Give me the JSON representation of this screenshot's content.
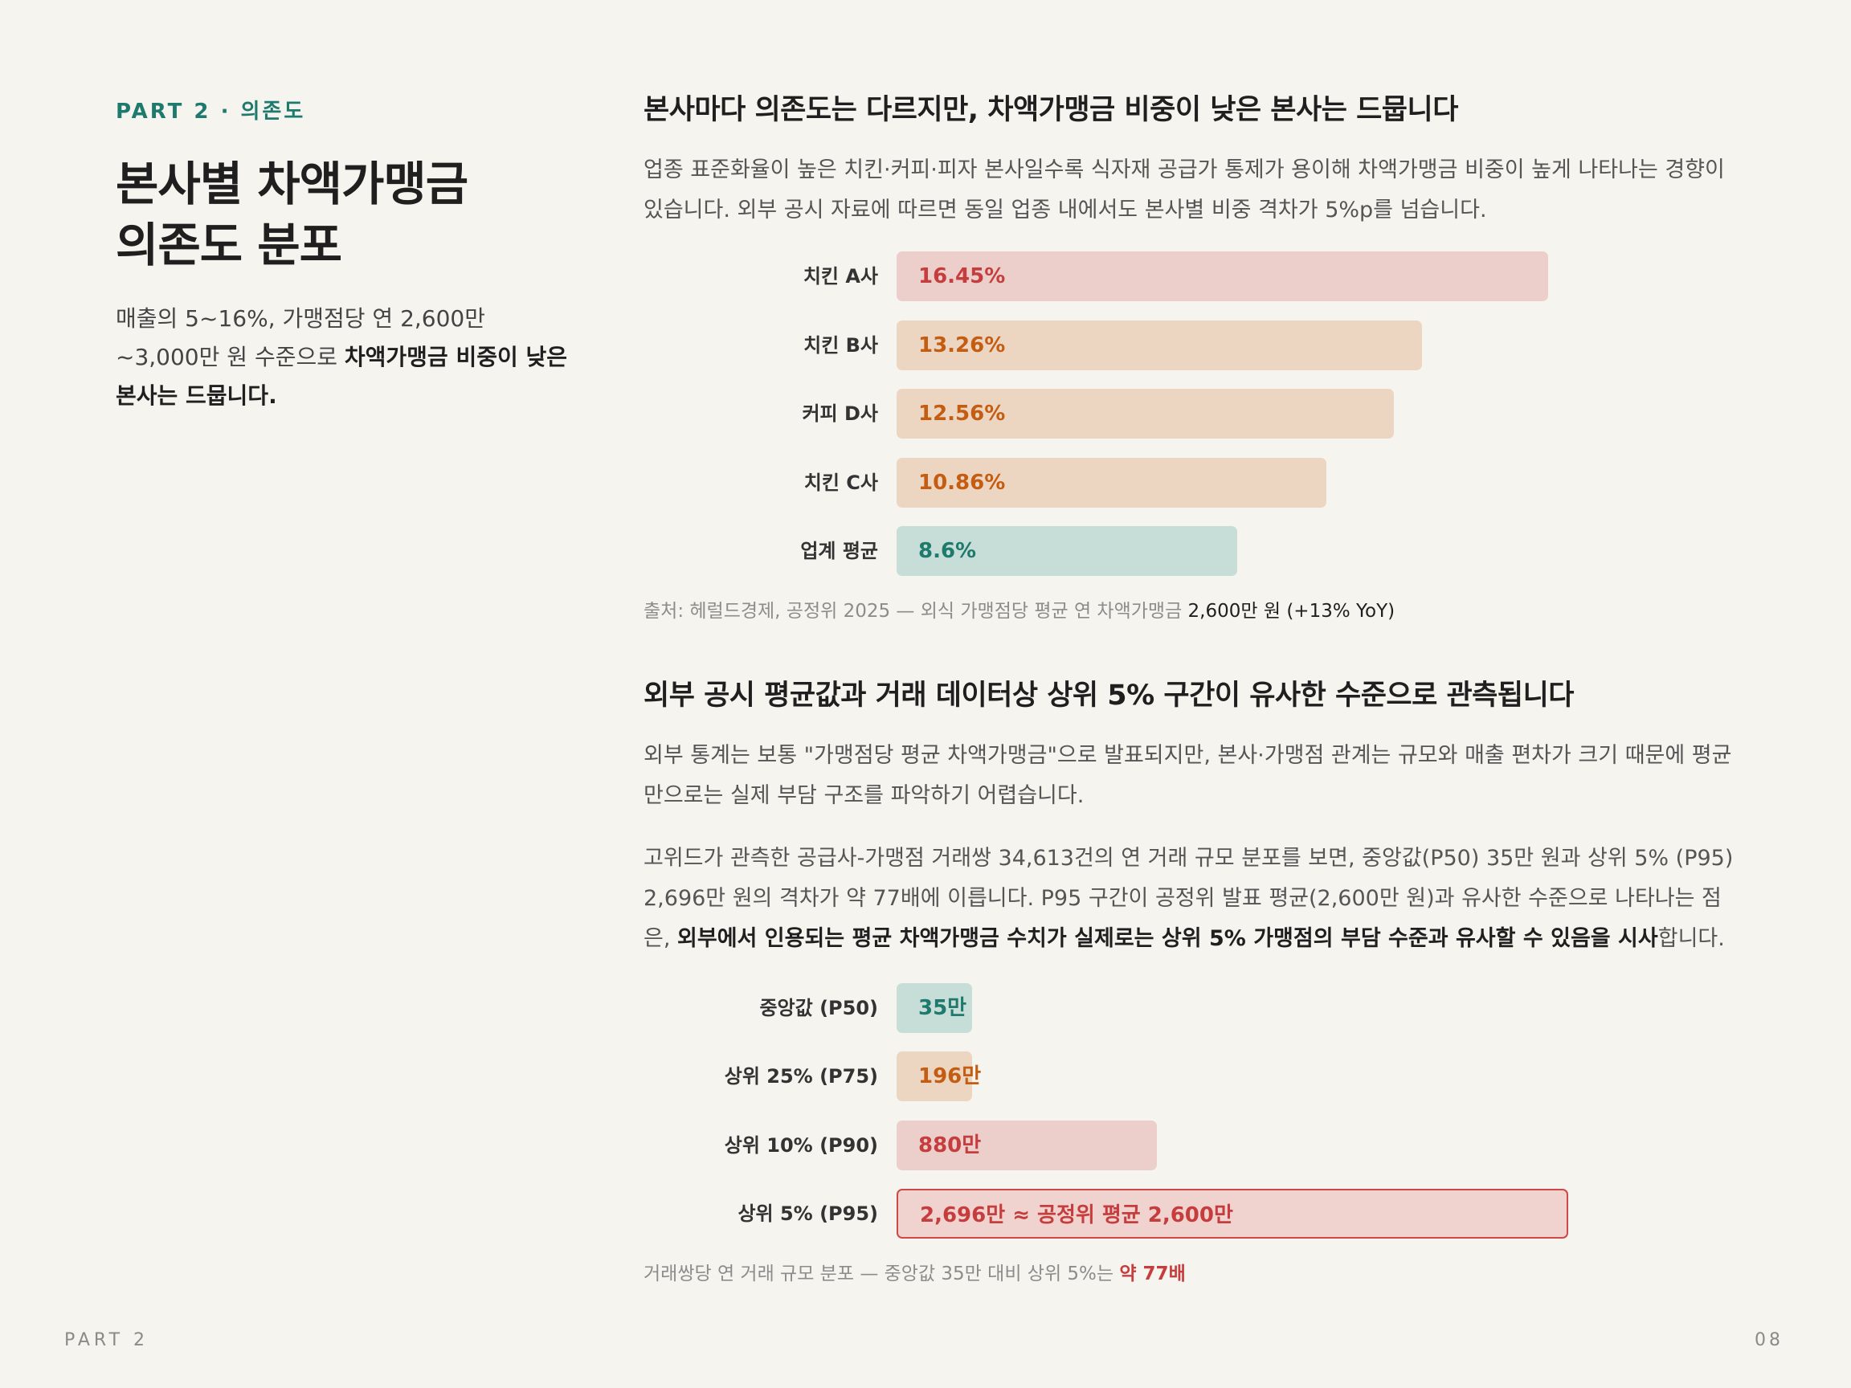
{
  "left": {
    "eyebrow": "PART 2 · 의존도",
    "title_line1": "본사별 차액가맹금",
    "title_line2": "의존도 분포",
    "summary_plain": "매출의 5~16%, 가맹점당 연 2,600만 ~3,000만 원 수준으로 ",
    "summary_bold": "차액가맹금 비중이 낮은 본사는 드뭅니다."
  },
  "section1": {
    "heading": "본사마다 의존도는 다르지만, 차액가맹금 비중이 낮은 본사는 드뭅니다",
    "body": "업종 표준화율이 높은 치킨·커피·피자 본사일수록 식자재 공급가 통제가 용이해 차액가맹금 비중이 높게 나타나는 경향이 있습니다. 외부 공시 자료에 따르면 동일 업종 내에서도 본사별 비중 격차가 5%p를 넘습니다.",
    "source_plain": "출처: 헤럴드경제, 공정위 2025 — 외식 가맹점당 평균 연 차액가맹금 ",
    "source_strong": "2,600만 원 (+13% YoY)"
  },
  "section2": {
    "heading": "외부 공시 평균값과 거래 데이터상 상위 5% 구간이 유사한 수준으로 관측됩니다",
    "para1": "외부 통계는 보통 \"가맹점당 평균 차액가맹금\"으로 발표되지만, 본사·가맹점 관계는 규모와 매출 편차가 크기 때문에 평균만으로는 실제 부담 구조를 파악하기 어렵습니다.",
    "para2_plain": "고위드가 관측한 공급사-가맹점 거래쌍 34,613건의 연 거래 규모 분포를 보면, 중앙값(P50) 35만 원과 상위 5% (P95) 2,696만 원의 격차가 약 77배에 이릅니다. P95 구간이 공정위 발표 평균(2,600만 원)과 유사한 수준으로 나타나는 점은, ",
    "para2_bold": "외부에서 인용되는 평균 차액가맹금 수치가 실제로는 상위 5% 가맹점의 부담 수준과 유사할 수 있음을 시사",
    "para2_end": "합니다.",
    "source_plain": "거래쌍당 연 거래 규모 분포 — 중앙값 35만 대비 상위 5%는 ",
    "source_accent": "약 77배"
  },
  "chart_data": [
    {
      "type": "bar",
      "orientation": "horizontal",
      "unit": "%",
      "categories": [
        "치킨 A사",
        "치킨 B사",
        "커피 D사",
        "치킨 C사",
        "업계 평균"
      ],
      "values": [
        16.45,
        13.26,
        12.56,
        10.86,
        8.6
      ],
      "value_labels": [
        "16.45%",
        "13.26%",
        "12.56%",
        "10.86%",
        "8.6%"
      ],
      "bar_colors": [
        "red",
        "orange",
        "orange",
        "orange",
        "teal"
      ],
      "xlim": [
        0,
        21.2
      ]
    },
    {
      "type": "bar",
      "orientation": "horizontal",
      "unit": "만 원",
      "categories": [
        "중앙값 (P50)",
        "상위 25% (P75)",
        "상위 10% (P90)",
        "상위 5% (P95)"
      ],
      "values": [
        35,
        196,
        880,
        2696
      ],
      "value_labels": [
        "35만",
        "196만",
        "880만",
        "2,696만 ≈ 공정위 평균 2,600만"
      ],
      "bar_colors": [
        "teal",
        "orange",
        "red",
        "highlight"
      ],
      "display_fraction": [
        0.09,
        0.09,
        0.31,
        0.8
      ]
    }
  ],
  "colors": {
    "accent_teal": "#1e7a6d",
    "accent_red": "#c63d3d",
    "accent_orange": "#c45c12",
    "background": "#f6f4ee"
  },
  "footer": {
    "section": "PART 2",
    "page": "08"
  }
}
